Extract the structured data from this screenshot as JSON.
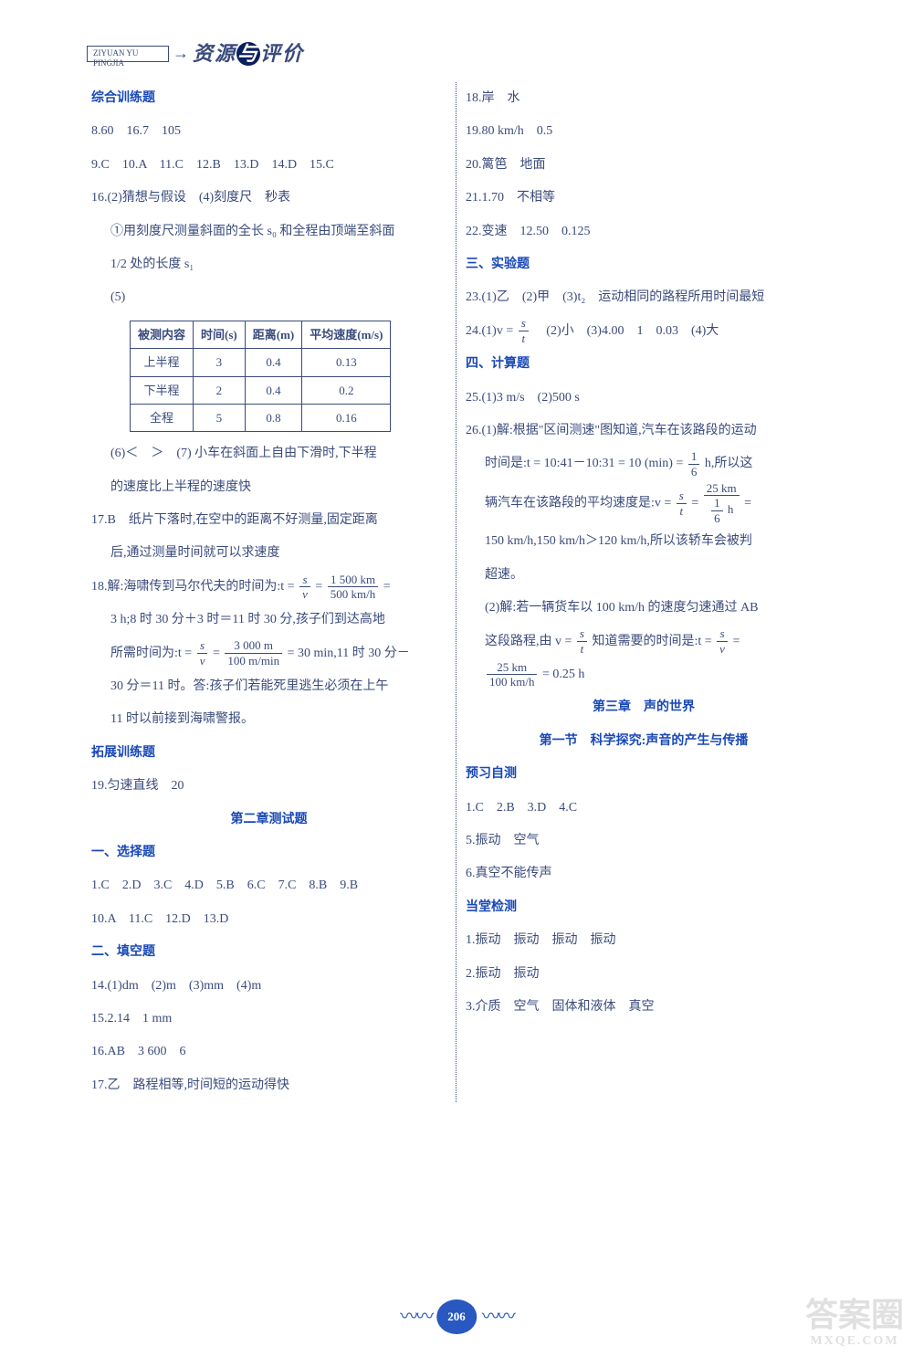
{
  "header": {
    "box_text": "ZIYUAN YU PINGJIA",
    "title_left": "资源",
    "title_mid": "与",
    "title_right": "评价"
  },
  "left": {
    "sec1_title": "综合训练题",
    "l8": "8.60　16.7　105",
    "l9": "9.C　10.A　11.C　12.B　13.D　14.D　15.C",
    "l16a": "16.(2)猜想与假设　(4)刻度尺　秒表",
    "l16b": "①用刻度尺测量斜面的全长 s₀ 和全程由顶端至斜面",
    "l16c": "1/2 处的长度 s₁",
    "l16d": "(5)",
    "table": {
      "headers": [
        "被测内容",
        "时间(s)",
        "距离(m)",
        "平均速度(m/s)"
      ],
      "rows": [
        [
          "上半程",
          "3",
          "0.4",
          "0.13"
        ],
        [
          "下半程",
          "2",
          "0.4",
          "0.2"
        ],
        [
          "全程",
          "5",
          "0.8",
          "0.16"
        ]
      ]
    },
    "l16e": "(6)＜　＞　(7) 小车在斜面上自由下滑时,下半程",
    "l16f": "的速度比上半程的速度快",
    "l17a": "17.B　纸片下落时,在空中的距离不好测量,固定距离",
    "l17b": "后,通过测量时间就可以求速度",
    "l18a_pre": "18.解:海啸传到马尔代夫的时间为:t = ",
    "l18a_f1n": "s",
    "l18a_f1d": "v",
    "l18a_mid": " = ",
    "l18a_f2n": "1 500 km",
    "l18a_f2d": "500 km/h",
    "l18a_post": " =",
    "l18b": "3 h;8 时 30 分＋3 时＝11 时 30 分,孩子们到达高地",
    "l18c_pre": "所需时间为:t = ",
    "l18c_f1n": "s",
    "l18c_f1d": "v",
    "l18c_mid": " = ",
    "l18c_f2n": "3 000 m",
    "l18c_f2d": "100 m/min",
    "l18c_post": " = 30 min,11 时 30 分－",
    "l18d": "30 分＝11 时。答:孩子们若能死里逃生必须在上午",
    "l18e": "11 时以前接到海啸警报。",
    "sec2_title": "拓展训练题",
    "l19": "19.匀速直线　20",
    "sec3_title": "第二章测试题",
    "sub1": "一、选择题",
    "s1a": "1.C　2.D　3.C　4.D　5.B　6.C　7.C　8.B　9.B",
    "s1b": "10.A　11.C　12.D　13.D",
    "sub2": "二、填空题",
    "s14": "14.(1)dm　(2)m　(3)mm　(4)m",
    "s15": "15.2.14　1 mm",
    "s16": "16.AB　3 600　6",
    "s17": "17.乙　路程相等,时间短的运动得快"
  },
  "right": {
    "r18": "18.岸　水",
    "r19": "19.80 km/h　0.5",
    "r20": "20.篱笆　地面",
    "r21": "21.1.70　不相等",
    "r22": "22.变速　12.50　0.125",
    "sub3": "三、实验题",
    "r23": "23.(1)乙　(2)甲　(3)t₂　运动相同的路程所用时间最短",
    "r24_pre": "24.(1)v = ",
    "r24_fn": "s",
    "r24_fd": "t",
    "r24_post": "　(2)小　(3)4.00　1　0.03　(4)大",
    "sub4": "四、计算题",
    "r25": "25.(1)3 m/s　(2)500 s",
    "r26a": "26.(1)解:根据\"区间测速\"图知道,汽车在该路段的运动",
    "r26b_pre": "时间是:t = 10:41－10:31 = 10 (min) = ",
    "r26b_fn": "1",
    "r26b_fd": "6",
    "r26b_post": " h,所以这",
    "r26c_pre": "辆汽车在该路段的平均速度是:v = ",
    "r26c_f1n": "s",
    "r26c_f1d": "t",
    "r26c_mid": " = ",
    "r26c_f2n": "25 km",
    "r26c_f2d_n": "1",
    "r26c_f2d_d": "6",
    "r26c_f2d_post": " h",
    "r26c_post": " =",
    "r26d": "150 km/h,150 km/h＞120 km/h,所以该轿车会被判",
    "r26e": "超速。",
    "r26f": "(2)解:若一辆货车以 100 km/h 的速度匀速通过 AB",
    "r26g_pre": "这段路程,由 v = ",
    "r26g_f1n": "s",
    "r26g_f1d": "t",
    "r26g_mid": " 知道需要的时间是:t = ",
    "r26g_f2n": "s",
    "r26g_f2d": "v",
    "r26g_post": " =",
    "r26h_fn": "25 km",
    "r26h_fd": "100 km/h",
    "r26h_post": " = 0.25 h",
    "sec4_title": "第三章　声的世界",
    "sec5_title": "第一节　科学探究:声音的产生与传播",
    "sub5": "预习自测",
    "p1": "1.C　2.B　3.D　4.C",
    "p5": "5.振动　空气",
    "p6": "6.真空不能传声",
    "sub6": "当堂检测",
    "d1": "1.振动　振动　振动　振动",
    "d2": "2.振动　振动",
    "d3": "3.介质　空气　固体和液体　真空"
  },
  "page": "206",
  "watermark": {
    "big": "答案圈",
    "small": "MXQE.COM"
  }
}
